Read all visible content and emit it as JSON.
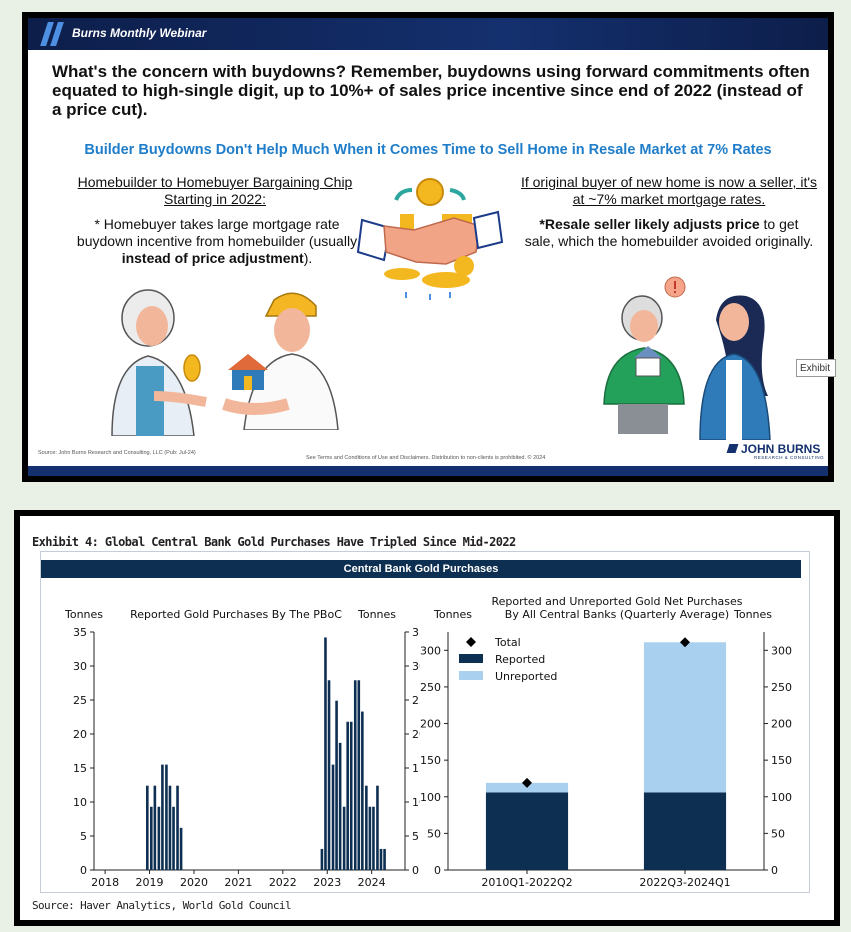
{
  "slide": {
    "header_title": "Burns Monthly Webinar",
    "headline": "What's the concern with buydowns? Remember, buydowns using forward commitments often equated to high-single digit, up to 10%+ of sales price incentive since end of 2022 (instead of a price cut).",
    "subheading": "Builder Buydowns Don't Help Much When it Comes Time to Sell Home in Resale Market at 7% Rates",
    "left_heading": "Homebuilder to Homebuyer Bargaining Chip Starting in 2022:",
    "left_text_before": "* Homebuyer takes large mortgage rate buydown incentive from homebuilder (usually ",
    "left_text_bold": "instead of price adjustment",
    "left_text_after": ").",
    "right_heading": "If original buyer of new home is now a seller, it's at ~7% market mortgage rates.",
    "right_text_bold": "*Resale seller likely adjusts price",
    "right_text_after": " to get sale, which the homebuilder avoided originally.",
    "source": "Source: John Burns Research and Consulting, LLC (Pub: Jul-24)",
    "disclaimer": "See Terms and Conditions of Use and Disclaimers. Distribution to non-clients is prohibited. © 2024",
    "logo": "JOHN BURNS",
    "logo_sub": "RESEARCH & CONSULTING",
    "icons": [
      "handshake-coins-icon",
      "woman-icon",
      "construction-worker-icon",
      "house-icon",
      "seller-man-icon",
      "realtor-woman-icon"
    ]
  },
  "exhibit": {
    "title": "Exhibit 4: Global Central Bank Gold Purchases Have Tripled Since Mid-2022",
    "banner": "Central Bank Gold Purchases",
    "source": "Source: Haver Analytics, World Gold Council",
    "button": "Exhibit"
  },
  "chart_data": [
    {
      "type": "bar",
      "title": "Reported Gold Purchases By The PBoC",
      "ylabel_left": "Tonnes",
      "ylabel_right": "Tonnes",
      "ylim": [
        0,
        35
      ],
      "yticks": [
        0,
        5,
        10,
        15,
        20,
        25,
        30,
        35
      ],
      "xlim": [
        2017.75,
        2024.75
      ],
      "xticks": [
        "2018",
        "2019",
        "2020",
        "2021",
        "2022",
        "2023",
        "2024"
      ],
      "color": "#0d2f52",
      "x": [
        2018.95,
        2019.04,
        2019.12,
        2019.21,
        2019.29,
        2019.38,
        2019.46,
        2019.54,
        2019.63,
        2019.71,
        2022.88,
        2022.96,
        2023.04,
        2023.13,
        2023.21,
        2023.29,
        2023.38,
        2023.46,
        2023.54,
        2023.63,
        2023.71,
        2023.79,
        2023.88,
        2023.96,
        2024.04,
        2024.13,
        2024.21,
        2024.29
      ],
      "values": [
        12.4,
        9.3,
        12.4,
        9.3,
        15.5,
        15.5,
        12.4,
        9.3,
        12.4,
        6.2,
        3.1,
        34.2,
        27.9,
        15.5,
        24.9,
        18.7,
        9.3,
        21.8,
        21.8,
        27.9,
        27.9,
        23.3,
        12.4,
        9.3,
        9.3,
        12.4,
        3.1,
        3.1
      ]
    },
    {
      "type": "bar",
      "stacked": true,
      "title": "Reported and Unreported Gold Net Purchases By All Central Banks (Quarterly Average)",
      "ylabel_left": "Tonnes",
      "ylabel_right": "Tonnes",
      "ylim": [
        0,
        325
      ],
      "yticks": [
        0,
        50,
        100,
        150,
        200,
        250,
        300
      ],
      "categories": [
        "2010Q1-2022Q2",
        "2022Q3-2024Q1"
      ],
      "series": [
        {
          "name": "Reported",
          "values": [
            106,
            106
          ],
          "color": "#0d2f52"
        },
        {
          "name": "Unreported",
          "values": [
            13,
            205
          ],
          "color": "#a9d0ee"
        }
      ],
      "total": {
        "name": "Total",
        "values": [
          119,
          311
        ]
      },
      "legend": "top-left"
    }
  ]
}
